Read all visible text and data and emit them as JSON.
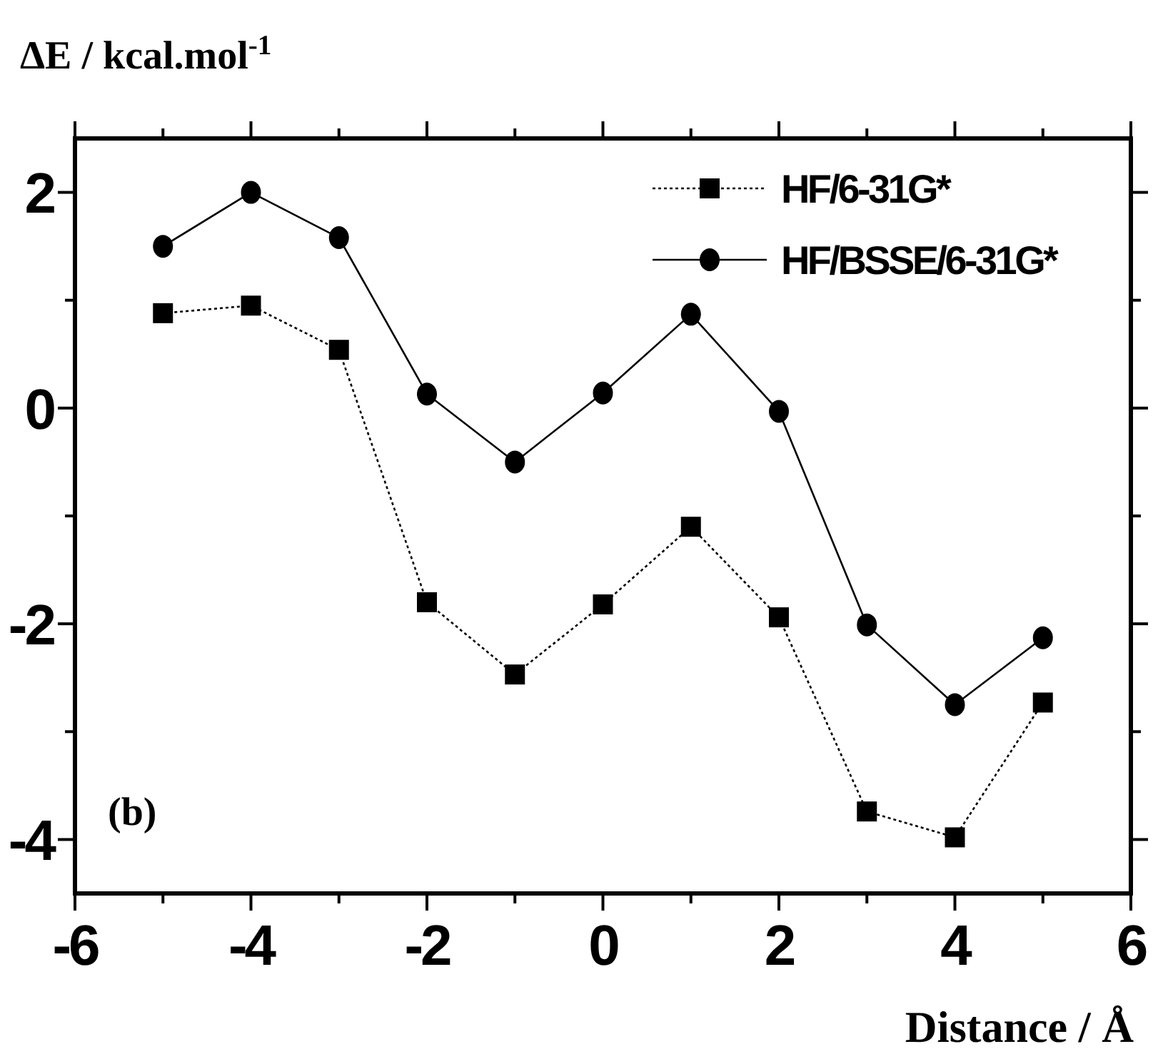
{
  "chart_data": {
    "type": "line",
    "ylabel": "ΔE / kcal.mol$^{-1}$",
    "xlabel": "Distance / Å",
    "annotations": [
      "(b)"
    ],
    "x": [
      -5,
      -4,
      -3,
      -2,
      -1,
      0,
      1,
      2,
      3,
      4,
      5
    ],
    "series": [
      {
        "name": "HF/6-31G*",
        "color": "#000000",
        "marker": "square",
        "line_style": "dotted",
        "values": [
          0.88,
          0.95,
          0.54,
          -1.8,
          -2.47,
          -1.82,
          -1.1,
          -1.94,
          -3.74,
          -3.98,
          -2.73
        ]
      },
      {
        "name": "HF/BSSE/6-31G*",
        "color": "#000000",
        "marker": "circle",
        "line_style": "solid",
        "values": [
          1.5,
          2.0,
          1.58,
          0.13,
          -0.5,
          0.14,
          0.87,
          -0.03,
          -2.01,
          -2.75,
          -2.13
        ]
      }
    ],
    "xlim": [
      -6,
      6
    ],
    "xticks": [
      -6,
      -4,
      -2,
      0,
      2,
      4,
      6
    ],
    "ylim": [
      -4.5,
      2.5
    ],
    "yticks": [
      -4,
      -2,
      0,
      2
    ],
    "grid": false,
    "legend": "top right"
  }
}
